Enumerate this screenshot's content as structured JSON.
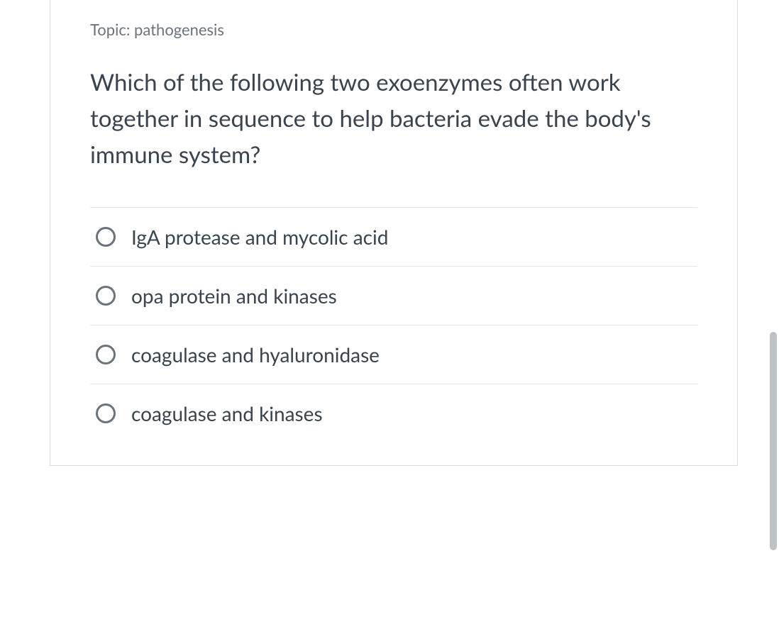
{
  "topic": {
    "prefix": "Topic:",
    "value": "pathogenesis"
  },
  "question": "Which of the following two exoenzymes often work together in sequence to help bacteria evade the body's immune system?",
  "options": [
    {
      "label": "IgA protease and mycolic acid"
    },
    {
      "label": "opa protein and kinases"
    },
    {
      "label": "coagulase and hyaluronidase"
    },
    {
      "label": "coagulase and kinases"
    }
  ],
  "colors": {
    "text_primary": "#3a444e",
    "text_muted": "#6b737b",
    "border": "#d9dcdf",
    "divider": "#e3e6e9",
    "radio_border": "#858c93",
    "scrollbar": "#bfc3c7",
    "background": "#ffffff"
  },
  "typography": {
    "topic_fontsize": 22,
    "question_fontsize": 33,
    "option_fontsize": 28
  }
}
